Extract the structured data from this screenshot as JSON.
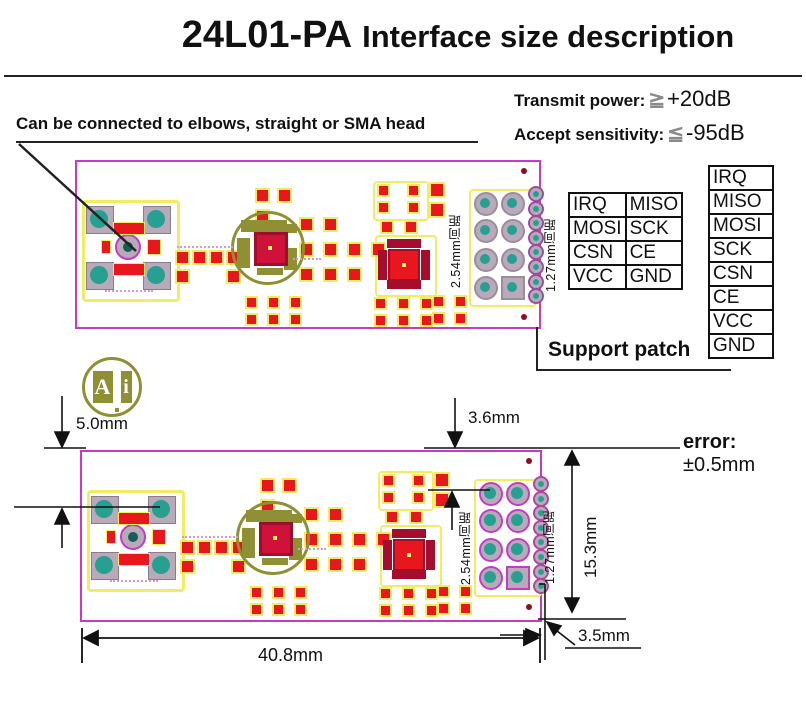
{
  "header": {
    "title_model": "24L01-PA",
    "title_rest": "Interface size description"
  },
  "annotation": {
    "text": "Can be connected to elbows, straight or SMA head"
  },
  "specs": {
    "transmit_label": "Transmit power:",
    "transmit_symbol": "≧",
    "transmit_value": "+20dB",
    "accept_label": "Accept sensitivity:",
    "accept_symbol": "≦",
    "accept_value": "-95dB"
  },
  "pin_table": {
    "rows": [
      [
        "IRQ",
        "MISO"
      ],
      [
        "MOSI",
        "SCK"
      ],
      [
        "CSN",
        "CE"
      ],
      [
        "VCC",
        "GND"
      ]
    ]
  },
  "pin_list": [
    "IRQ",
    "MISO",
    "MOSI",
    "SCK",
    "CSN",
    "CE",
    "VCC",
    "GND"
  ],
  "support_patch_label": "Support patch",
  "pitch_labels": {
    "p254": "2.54mm间距",
    "p127": "1.27mm间距"
  },
  "logo": {
    "letter_a": "A",
    "letter_i": "i"
  },
  "dimensions": {
    "top_left": "5.0mm",
    "top_right": "3.6mm",
    "right": "15.3mm",
    "bottom_right": "3.5mm",
    "bottom": "40.8mm"
  },
  "error_note": {
    "label": "error:",
    "value": "±0.5mm"
  },
  "colors": {
    "board_outline": "#c63bc6",
    "pad_red": "#e8161d",
    "pad_dark": "#a50d2c",
    "silk_yellow": "#f2ec62",
    "hole_teal": "#27a092",
    "olive": "#8f8f33",
    "pad_gray": "#b9aaba",
    "dot_dark_red": "#8d1022"
  }
}
